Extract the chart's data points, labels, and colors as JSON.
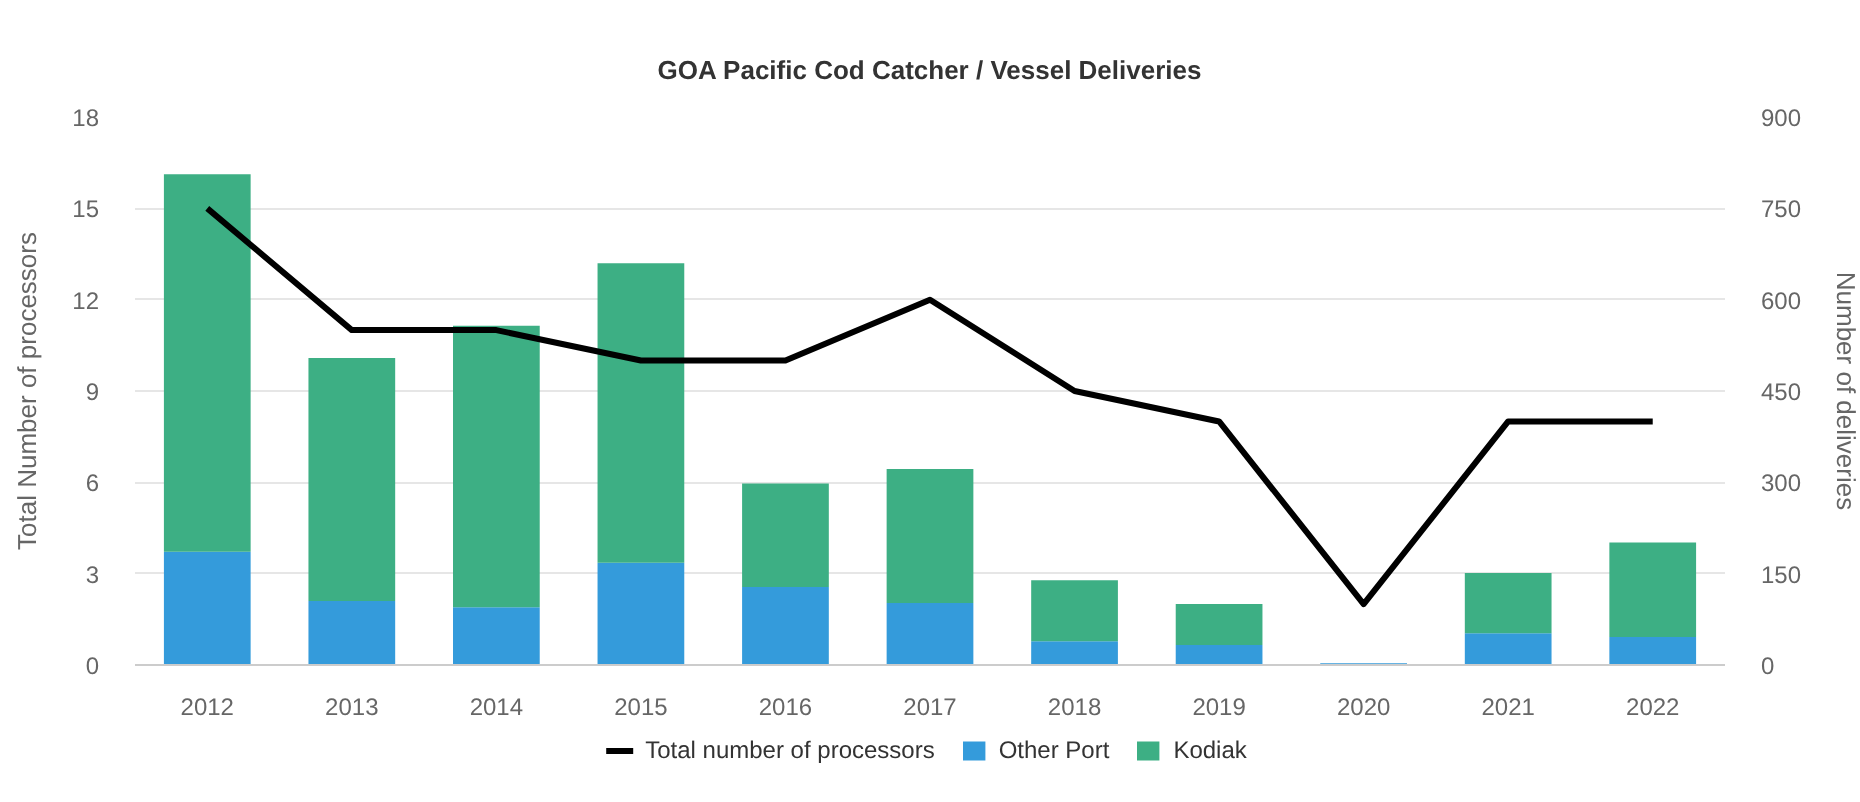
{
  "chart_data": {
    "type": "bar",
    "title": "GOA Pacific Cod Catcher / Vessel Deliveries",
    "ylabel": "Total Number of processors",
    "y2label": "Number of deliveries",
    "categories": [
      "2012",
      "2013",
      "2014",
      "2015",
      "2016",
      "2017",
      "2018",
      "2019",
      "2020",
      "2021",
      "2022"
    ],
    "stacked": true,
    "series": [
      {
        "name": "Total number of processors",
        "type": "line",
        "color": "#000000",
        "values": [
          15,
          11,
          11,
          10,
          10,
          12,
          9,
          8,
          2,
          8,
          8
        ]
      },
      {
        "name": "Other Port",
        "color": "#349bdb",
        "axis": "y2",
        "values": [
          186,
          105,
          95,
          168,
          128,
          102,
          39,
          33,
          3,
          52,
          46
        ]
      },
      {
        "name": "Kodiak",
        "color": "#3daf84",
        "axis": "y2",
        "values": [
          620,
          399,
          462,
          492,
          170,
          220,
          100,
          67,
          0,
          99,
          155
        ]
      }
    ],
    "ylim": [
      0,
      18
    ],
    "yticks": [
      0,
      3,
      6,
      9,
      12,
      15,
      18
    ],
    "y2lim": [
      0,
      900
    ],
    "y2ticks": [
      0,
      150,
      300,
      450,
      600,
      750,
      900
    ],
    "grid": "y",
    "legend": "bottom"
  }
}
